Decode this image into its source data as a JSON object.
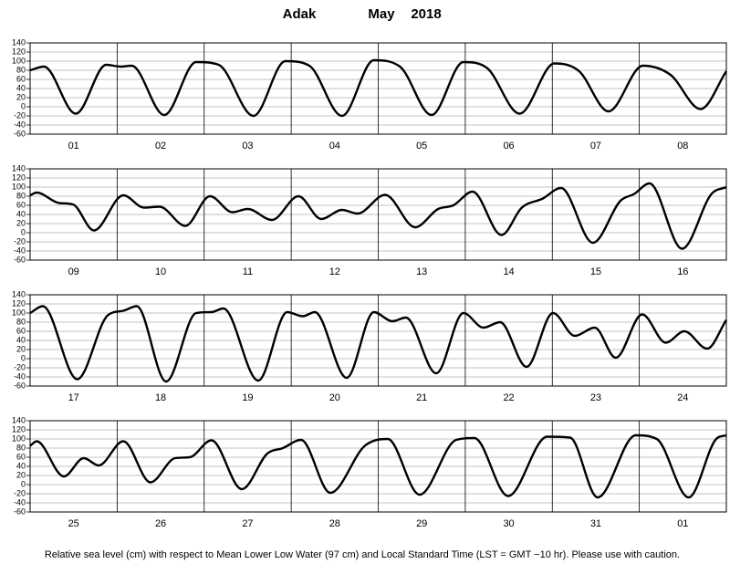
{
  "header": {
    "station": "Adak",
    "month": "May",
    "year": "2018"
  },
  "footnote": "Relative sea level (cm) with respect to Mean Lower Low Water (97 cm) and Local Standard Time (LST = GMT −10 hr). Please use with caution.",
  "chart_data": [
    {
      "type": "line",
      "categories": [
        "01",
        "02",
        "03",
        "04",
        "05",
        "06",
        "07",
        "08"
      ],
      "xlim": [
        0,
        192
      ],
      "ylim": [
        -60,
        140
      ],
      "yticks": [
        -60,
        -40,
        -20,
        0,
        20,
        40,
        60,
        80,
        100,
        120,
        140
      ],
      "grid": true,
      "x": [
        0,
        3.8,
        12.6,
        21,
        25,
        28,
        37,
        45.8,
        52,
        61.6,
        70.4,
        77,
        86,
        94.8,
        102,
        110.7,
        119.5,
        126,
        135,
        144.6,
        151.4,
        159.5,
        169,
        176.6,
        184.9,
        192
      ],
      "series": [
        {
          "color": "#000000",
          "values": [
            80,
            88,
            -15,
            92,
            88,
            90,
            -18,
            98,
            92,
            -20,
            100,
            90,
            -20,
            102,
            88,
            -18,
            98,
            85,
            -15,
            95,
            78,
            -10,
            90,
            70,
            -5,
            78
          ]
        }
      ]
    },
    {
      "type": "line",
      "categories": [
        "09",
        "10",
        "11",
        "12",
        "13",
        "14",
        "15",
        "16"
      ],
      "xlim": [
        0,
        192
      ],
      "ylim": [
        -60,
        140
      ],
      "yticks": [
        -60,
        -40,
        -20,
        0,
        20,
        40,
        60,
        80,
        100,
        120,
        140
      ],
      "grid": true,
      "x": [
        0,
        1.8,
        8,
        11.8,
        17.6,
        25.7,
        31.4,
        35.7,
        42.8,
        49.6,
        55.8,
        60,
        66.7,
        74,
        80.3,
        86,
        90.3,
        97.9,
        106.2,
        112.5,
        116.7,
        122,
        130,
        135.6,
        141.4,
        146.4,
        155.2,
        162.8,
        166.6,
        170.8,
        179.8,
        187.9,
        192
      ],
      "series": [
        {
          "color": "#000000",
          "values": [
            82,
            88,
            65,
            62,
            5,
            82,
            55,
            57,
            15,
            80,
            45,
            52,
            28,
            80,
            30,
            50,
            42,
            83,
            12,
            52,
            60,
            90,
            -5,
            55,
            75,
            98,
            -22,
            70,
            85,
            108,
            -35,
            85,
            100
          ]
        }
      ]
    },
    {
      "type": "line",
      "categories": [
        "17",
        "18",
        "19",
        "20",
        "21",
        "22",
        "23",
        "24"
      ],
      "xlim": [
        0,
        192
      ],
      "ylim": [
        -60,
        140
      ],
      "yticks": [
        -60,
        -40,
        -20,
        0,
        20,
        40,
        60,
        80,
        100,
        120,
        140
      ],
      "grid": true,
      "x": [
        0,
        3.5,
        13,
        21.4,
        25.7,
        29.4,
        37.5,
        45.8,
        50,
        53.3,
        62.9,
        70.9,
        75.2,
        78.5,
        87.3,
        94.8,
        99.9,
        103.6,
        112,
        119.5,
        125,
        129.6,
        136.9,
        144.2,
        150.2,
        155.7,
        161.5,
        168.8,
        175.3,
        180.4,
        186.7,
        192
      ],
      "series": [
        {
          "color": "#000000",
          "values": [
            100,
            115,
            -45,
            95,
            105,
            115,
            -50,
            100,
            102,
            110,
            -48,
            102,
            93,
            102,
            -42,
            102,
            82,
            90,
            -32,
            100,
            68,
            80,
            -18,
            100,
            50,
            68,
            2,
            97,
            35,
            60,
            22,
            85
          ]
        }
      ]
    },
    {
      "type": "line",
      "categories": [
        "25",
        "26",
        "27",
        "28",
        "29",
        "30",
        "31",
        "01"
      ],
      "xlim": [
        0,
        192
      ],
      "ylim": [
        -60,
        140
      ],
      "yticks": [
        -60,
        -40,
        -20,
        0,
        20,
        40,
        60,
        80,
        100,
        120,
        140
      ],
      "grid": true,
      "x": [
        0,
        1.8,
        9.3,
        14.8,
        18.9,
        25.7,
        33.2,
        40,
        44,
        50,
        58.4,
        65.4,
        69.7,
        74.7,
        82.8,
        92.3,
        98.6,
        107.4,
        117.5,
        122.5,
        131.8,
        142.6,
        148.9,
        156.5,
        167,
        172.8,
        181.6,
        189.2,
        192
      ],
      "series": [
        {
          "color": "#000000",
          "values": [
            85,
            95,
            18,
            58,
            42,
            95,
            5,
            58,
            60,
            97,
            -10,
            68,
            80,
            98,
            -18,
            85,
            100,
            -22,
            98,
            102,
            -25,
            105,
            103,
            -28,
            108,
            100,
            -28,
            100,
            108
          ]
        }
      ]
    }
  ]
}
